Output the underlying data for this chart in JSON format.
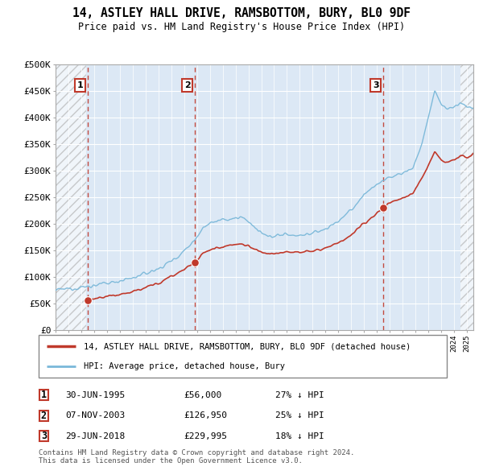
{
  "title": "14, ASTLEY HALL DRIVE, RAMSBOTTOM, BURY, BL0 9DF",
  "subtitle": "Price paid vs. HM Land Registry's House Price Index (HPI)",
  "ylabel_ticks": [
    "£0",
    "£50K",
    "£100K",
    "£150K",
    "£200K",
    "£250K",
    "£300K",
    "£350K",
    "£400K",
    "£450K",
    "£500K"
  ],
  "ytick_vals": [
    0,
    50000,
    100000,
    150000,
    200000,
    250000,
    300000,
    350000,
    400000,
    450000,
    500000
  ],
  "xlim_start": 1993.0,
  "xlim_end": 2025.5,
  "ylim": [
    0,
    500000
  ],
  "hatch_start": 1993.0,
  "hatch_end": 1995.4,
  "hatch_start2": 2024.5,
  "hatch_end2": 2025.5,
  "sale_points": [
    {
      "date_num": 1995.5,
      "price": 56000,
      "label": "1"
    },
    {
      "date_num": 2003.85,
      "price": 126950,
      "label": "2"
    },
    {
      "date_num": 2018.5,
      "price": 229995,
      "label": "3"
    }
  ],
  "vline_dates": [
    1995.5,
    2003.85,
    2018.5
  ],
  "legend_house_label": "14, ASTLEY HALL DRIVE, RAMSBOTTOM, BURY, BL0 9DF (detached house)",
  "legend_hpi_label": "HPI: Average price, detached house, Bury",
  "table_rows": [
    {
      "num": "1",
      "date": "30-JUN-1995",
      "price": "£56,000",
      "pct": "27% ↓ HPI"
    },
    {
      "num": "2",
      "date": "07-NOV-2003",
      "price": "£126,950",
      "pct": "25% ↓ HPI"
    },
    {
      "num": "3",
      "date": "29-JUN-2018",
      "price": "£229,995",
      "pct": "18% ↓ HPI"
    }
  ],
  "footnote": "Contains HM Land Registry data © Crown copyright and database right 2024.\nThis data is licensed under the Open Government Licence v3.0.",
  "hpi_color": "#7ab8d9",
  "house_color": "#c0392b",
  "hatch_color": "#b0b0b0",
  "bg_color": "#dce8f5",
  "grid_color": "#ffffff"
}
